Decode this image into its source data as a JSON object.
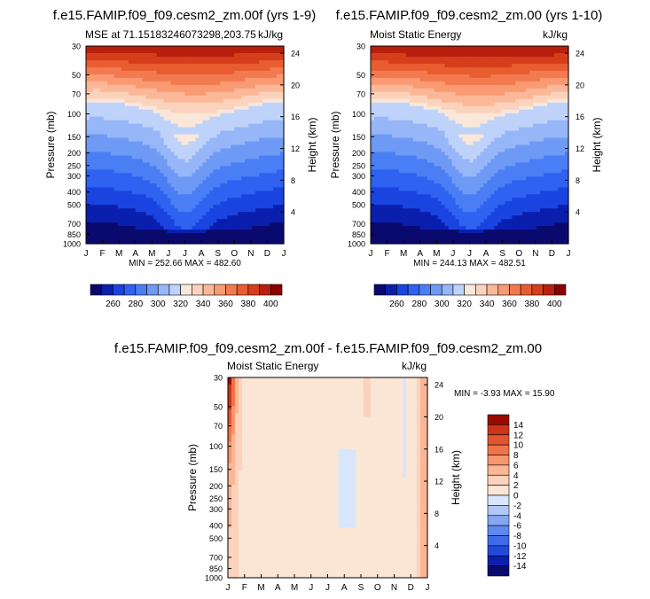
{
  "colors": {
    "levels_abs": [
      "#0a0a6e",
      "#0b1fae",
      "#1a44e0",
      "#2f62f0",
      "#4b7ef4",
      "#6e9af5",
      "#96b6f7",
      "#bfd3fa",
      "#f9e7d9",
      "#fbd3bd",
      "#fbb898",
      "#f99a72",
      "#f37a4e",
      "#e85d30",
      "#d63e1b",
      "#b81f0c",
      "#8b0000"
    ],
    "levels_diff": [
      "#0a0a6e",
      "#0b1fae",
      "#2448dc",
      "#3f6ae8",
      "#6088ee",
      "#86a6f2",
      "#b1c7f6",
      "#d8e5fb",
      "#fbe6d6",
      "#fcd2bc",
      "#fbb695",
      "#f8966d",
      "#f0744a",
      "#e25530",
      "#cc3519",
      "#9a0a00"
    ]
  },
  "panels": [
    {
      "id": "p1",
      "title": "f.e15.FAMIP.f09_f09.cesm2_zm.00f (yrs 1-9)",
      "left_label": "MSE at 71.15183246073298,203.75",
      "right_label": "kJ/kg",
      "ylabel": "Pressure (mb)",
      "ylabel_right": "Height (km)",
      "minmax": "MIN = 252.66  MAX = 482.60"
    },
    {
      "id": "p2",
      "title": "f.e15.FAMIP.f09_f09.cesm2_zm.00 (yrs 1-10)",
      "left_label": "Moist Static Energy",
      "right_label": "kJ/kg",
      "ylabel": "Pressure (mb)",
      "ylabel_right": "Height (km)",
      "minmax": "MIN = 244.13  MAX = 482.51"
    },
    {
      "id": "p3",
      "title": "f.e15.FAMIP.f09_f09.cesm2_zm.00f - f.e15.FAMIP.f09_f09.cesm2_zm.00",
      "left_label": "Moist Static Energy",
      "right_label": "kJ/kg",
      "ylabel": "Pressure (mb)",
      "ylabel_right": "Height (km)",
      "minmax": "MIN = -3.93  MAX = 15.90"
    }
  ],
  "chart_data": [
    {
      "type": "heatmap",
      "title": "f.e15.FAMIP.f09_f09.cesm2_zm.00f (yrs 1-9)",
      "x": [
        "J",
        "F",
        "M",
        "A",
        "M",
        "J",
        "J",
        "A",
        "S",
        "O",
        "N",
        "D",
        "J"
      ],
      "pressure_ticks": [
        "30",
        "50",
        "70",
        "100",
        "150",
        "200",
        "250",
        "300",
        "400",
        "500",
        "700",
        "850",
        "1000"
      ],
      "height_ticks": [
        "24",
        "20",
        "16",
        "12",
        "8",
        "4"
      ],
      "colorbar_labels": [
        "260",
        "280",
        "300",
        "320",
        "340",
        "360",
        "380",
        "400"
      ],
      "min": 252.66,
      "max": 482.6
    },
    {
      "type": "heatmap",
      "title": "f.e15.FAMIP.f09_f09.cesm2_zm.00 (yrs 1-10)",
      "x": [
        "J",
        "F",
        "M",
        "A",
        "M",
        "J",
        "J",
        "A",
        "S",
        "O",
        "N",
        "D",
        "J"
      ],
      "pressure_ticks": [
        "30",
        "50",
        "70",
        "100",
        "150",
        "200",
        "250",
        "300",
        "400",
        "500",
        "700",
        "850",
        "1000"
      ],
      "height_ticks": [
        "24",
        "20",
        "16",
        "12",
        "8",
        "4"
      ],
      "colorbar_labels": [
        "260",
        "280",
        "300",
        "320",
        "340",
        "360",
        "380",
        "400"
      ],
      "min": 244.13,
      "max": 482.51
    },
    {
      "type": "heatmap",
      "title": "f.e15.FAMIP.f09_f09.cesm2_zm.00f - f.e15.FAMIP.f09_f09.cesm2_zm.00",
      "x": [
        "J",
        "F",
        "M",
        "A",
        "M",
        "J",
        "J",
        "A",
        "S",
        "O",
        "N",
        "D",
        "J"
      ],
      "pressure_ticks": [
        "30",
        "50",
        "70",
        "100",
        "150",
        "200",
        "250",
        "300",
        "400",
        "500",
        "700",
        "850",
        "1000"
      ],
      "height_ticks": [
        "24",
        "20",
        "16",
        "12",
        "8",
        "4"
      ],
      "colorbar_labels": [
        "14",
        "12",
        "10",
        "8",
        "6",
        "4",
        "2",
        "0",
        "-2",
        "-4",
        "-6",
        "-8",
        "-10",
        "-12",
        "-14"
      ],
      "min": -3.93,
      "max": 15.9
    }
  ]
}
